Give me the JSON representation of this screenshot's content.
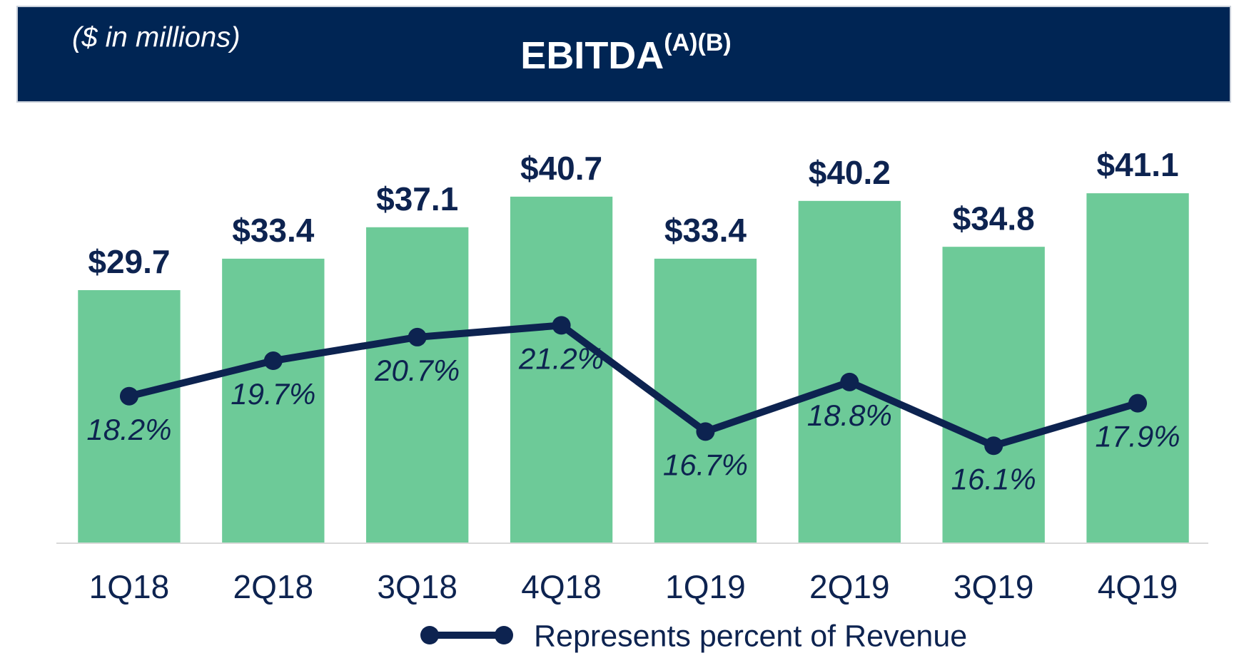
{
  "chart_data": {
    "type": "bar",
    "title": "EBITDA",
    "title_sup": "(A)(B)",
    "subtitle": "($ in millions)",
    "categories": [
      "1Q18",
      "2Q18",
      "3Q18",
      "4Q18",
      "1Q19",
      "2Q19",
      "3Q19",
      "4Q19"
    ],
    "series": [
      {
        "type": "bar",
        "color": "#6dca98",
        "values": [
          29.7,
          33.4,
          37.1,
          40.7,
          33.4,
          40.2,
          34.8,
          41.1
        ],
        "value_labels": [
          "$29.7",
          "$33.4",
          "$37.1",
          "$40.7",
          "$33.4",
          "$40.2",
          "$34.8",
          "$41.1"
        ]
      },
      {
        "type": "line",
        "name": "Represents percent of Revenue",
        "color": "#0d2350",
        "axis": "y2",
        "values": [
          18.2,
          19.7,
          20.7,
          21.2,
          16.7,
          18.8,
          16.1,
          17.9
        ],
        "value_labels": [
          "18.2%",
          "19.7%",
          "20.7%",
          "21.2%",
          "16.7%",
          "18.8%",
          "16.1%",
          "17.9%"
        ]
      }
    ],
    "ylim": [
      0,
      50
    ],
    "y2lim": [
      12,
      30
    ],
    "grid": false,
    "legend": "bottom"
  }
}
